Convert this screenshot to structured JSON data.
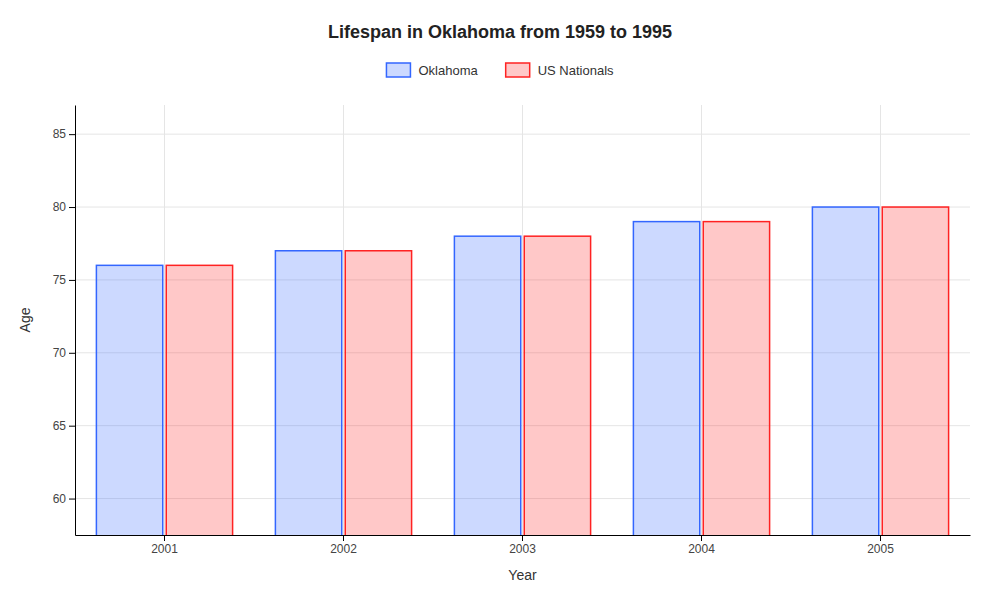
{
  "chart_data": {
    "type": "bar",
    "title": "Lifespan in Oklahoma from 1959 to 1995",
    "xlabel": "Year",
    "ylabel": "Age",
    "categories": [
      "2001",
      "2002",
      "2003",
      "2004",
      "2005"
    ],
    "series": [
      {
        "name": "Oklahoma",
        "color": "#3366ff",
        "values": [
          76,
          77,
          78,
          79,
          80
        ]
      },
      {
        "name": "US Nationals",
        "color": "#ff2222",
        "values": [
          76,
          77,
          78,
          79,
          80
        ]
      }
    ],
    "ylim": [
      57.5,
      87
    ],
    "yticks": [
      60,
      65,
      70,
      75,
      80,
      85
    ],
    "grid": true,
    "legend": "top"
  }
}
